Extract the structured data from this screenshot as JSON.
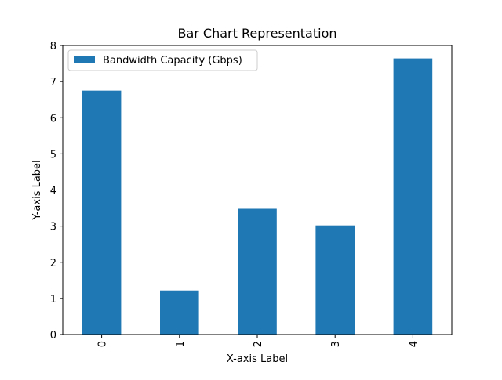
{
  "chart_data": {
    "type": "bar",
    "title": "Bar Chart Representation",
    "xlabel": "X-axis Label",
    "ylabel": "Y-axis Label",
    "categories": [
      "0",
      "1",
      "2",
      "3",
      "4"
    ],
    "series": [
      {
        "name": "Bandwidth Capacity (Gbps)",
        "values": [
          6.75,
          1.22,
          3.48,
          3.02,
          7.64
        ],
        "color": "#1f77b4"
      }
    ],
    "ylim": [
      0,
      8
    ],
    "yticks": [
      0,
      1,
      2,
      3,
      4,
      5,
      6,
      7,
      8
    ],
    "grid": false,
    "legend_position": "top-left"
  }
}
